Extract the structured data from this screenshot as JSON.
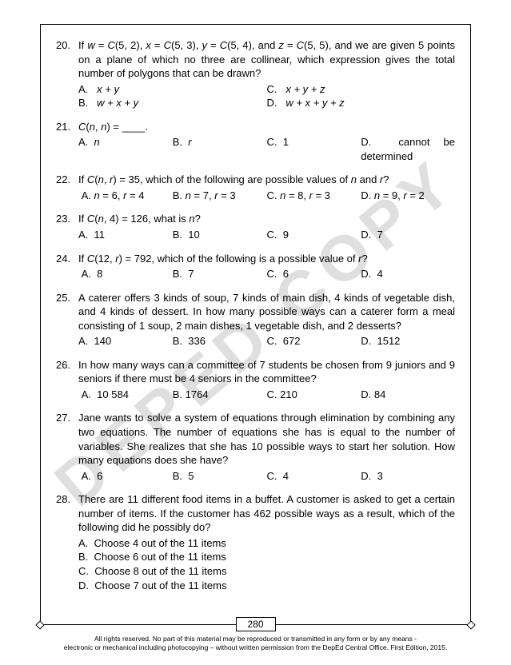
{
  "watermark": "DEPED COPY",
  "page_number": "280",
  "footer_line1": "All rights reserved. No part of this material may be reproduced or transmitted in any form or by any means -",
  "footer_line2": "electronic or mechanical including photocopying – without written permission from the DepEd Central Office. First Edition, 2015.",
  "q20": {
    "num": "20.",
    "text_a": "If ",
    "text_b": " = ",
    "text_c": "(5, 2), ",
    "text_d": " = ",
    "text_e": "(5, 3), ",
    "text_f": " = ",
    "text_g": "(5, 4), and ",
    "text_h": " = ",
    "text_i": "(5, 5), and we are given 5 points on a plane of which no three are collinear, which expression gives the total number of polygons that can be drawn?",
    "w": "w",
    "x": "x",
    "y": "y",
    "z": "z",
    "C": "C",
    "a_label": "A.",
    "a_text": "x + y",
    "b_label": "B.",
    "b_text": "w + x + y",
    "c_label": "C.",
    "c_text": "x + y + z",
    "d_label": "D.",
    "d_text": "w + x + y + z"
  },
  "q21": {
    "num": "21.",
    "text_a": "C",
    "text_b": "(",
    "text_c": "n",
    "text_d": ", ",
    "text_e": "n",
    "text_f": ") =  ____.",
    "a_label": "A.",
    "a_text": "n",
    "b_label": "B.",
    "b_text": "r",
    "c_label": "C.",
    "c_text": "1",
    "d_label": "D.",
    "d_text": "cannot be determined"
  },
  "q22": {
    "num": "22.",
    "text_a": "If ",
    "C": "C",
    "text_b": "(",
    "n": "n",
    "text_c": ", ",
    "r": "r",
    "text_d": ") = 35, which of the following are possible values of ",
    "text_e": " and ",
    "text_f": "?",
    "a_label": "A.",
    "a_text1": "n",
    "a_text2": " = 6, ",
    "a_text3": "r",
    "a_text4": " = 4",
    "b_label": "B.",
    "b_text1": "n",
    "b_text2": " = 7, ",
    "b_text3": "r",
    "b_text4": " = 3",
    "c_label": "C.",
    "c_text1": "n",
    "c_text2": " = 8, ",
    "c_text3": "r",
    "c_text4": " = 3",
    "d_label": "D.",
    "d_text1": "n",
    "d_text2": " = 9, ",
    "d_text3": "r",
    "d_text4": " = 2"
  },
  "q23": {
    "num": "23.",
    "text_a": "If ",
    "C": "C",
    "text_b": "(",
    "n": "n",
    "text_c": ", 4) =  126,  what is ",
    "text_d": "?",
    "a_label": "A.",
    "a_text": "11",
    "b_label": "B.",
    "b_text": "10",
    "c_label": "C.",
    "c_text": "9",
    "d_label": "D.",
    "d_text": "7"
  },
  "q24": {
    "num": "24.",
    "text_a": "If ",
    "C": "C",
    "text_b": "(12, ",
    "r": "r",
    "text_c": ") = 792,  which of the following is a possible value of ",
    "text_d": "?",
    "a_label": "A.",
    "a_text": "8",
    "b_label": "B.",
    "b_text": "7",
    "c_label": "C.",
    "c_text": "6",
    "d_label": "D.",
    "d_text": "4"
  },
  "q25": {
    "num": "25.",
    "text": "A caterer offers 3 kinds of soup, 7 kinds of main dish, 4 kinds of vegetable dish, and 4 kinds of dessert. In how many possible ways can a caterer form a meal consisting of 1 soup, 2 main dishes, 1 vegetable dish, and 2 desserts?",
    "a_label": "A.",
    "a_text": "140",
    "b_label": "B.",
    "b_text": "336",
    "c_label": "C.",
    "c_text": "672",
    "d_label": "D.",
    "d_text": "1512"
  },
  "q26": {
    "num": "26.",
    "text": "In how many ways can a committee of 7 students be chosen from 9 juniors and 9 seniors if there must be 4 seniors in the committee?",
    "a_label": "A.",
    "a_text": "10 584",
    "b_label": "B.",
    "b_text": "1764",
    "c_label": "C.",
    "c_text": "210",
    "d_label": "D.",
    "d_text": "84"
  },
  "q27": {
    "num": "27.",
    "text": "Jane wants to solve a system of equations through elimination by combining any two equations. The number of equations she has is equal to the number of variables. She realizes that she has 10 possible ways to start her solution. How many equations does she have?",
    "a_label": "A.",
    "a_text": "6",
    "b_label": "B.",
    "b_text": "5",
    "c_label": "C.",
    "c_text": "4",
    "d_label": "D.",
    "d_text": "3"
  },
  "q28": {
    "num": "28.",
    "text": "There are 11 different food items in a buffet. A customer is asked to get a certain number of items. If the customer has 462 possible ways as a result, which of the following did he possibly do?",
    "a_label": "A.",
    "a_text": "Choose 4 out of the 11 items",
    "b_label": "B.",
    "b_text": "Choose 6 out of the 11 items",
    "c_label": "C.",
    "c_text": "Choose 8 out of the 11 items",
    "d_label": "D.",
    "d_text": "Choose 7 out of the 11 items"
  }
}
